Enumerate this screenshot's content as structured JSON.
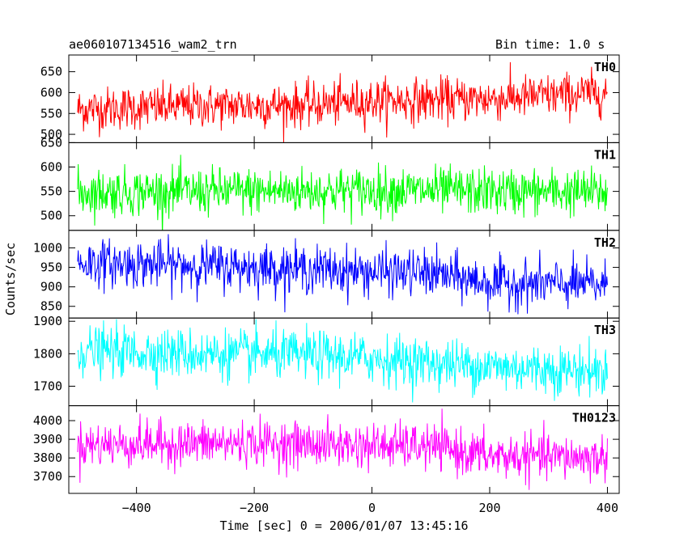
{
  "header": {
    "title": "ae060107134516_wam2_trn",
    "bin_time": "Bin time: 1.0 s"
  },
  "chart_data": {
    "type": "line",
    "xlabel": "Time [sec] 0 = 2006/01/07 13:45:16",
    "ylabel": "Counts/sec",
    "xlim": [
      -515,
      420
    ],
    "x_ticks": [
      -400,
      -200,
      0,
      200,
      400
    ],
    "x_tick_labels": [
      "−400",
      "−200",
      "0",
      "200",
      "400"
    ],
    "x_range": [
      -500,
      400
    ],
    "bin_time_s": 1.0,
    "grid": false,
    "panels": [
      {
        "name": "TH0",
        "color": "#ff0000",
        "ylim": [
          480,
          690
        ],
        "yticks": [
          500,
          550,
          600,
          650
        ],
        "trend": [
          [
            -500,
            560
          ],
          [
            -300,
            568
          ],
          [
            -100,
            570
          ],
          [
            0,
            580
          ],
          [
            200,
            585
          ],
          [
            400,
            600
          ]
        ],
        "noise_sd": 26
      },
      {
        "name": "TH1",
        "color": "#00ff00",
        "ylim": [
          470,
          650
        ],
        "yticks": [
          500,
          550,
          600,
          650
        ],
        "trend": [
          [
            -500,
            548
          ],
          [
            -250,
            550
          ],
          [
            0,
            552
          ],
          [
            200,
            550
          ],
          [
            400,
            548
          ]
        ],
        "noise_sd": 24
      },
      {
        "name": "TH2",
        "color": "#0000ff",
        "ylim": [
          820,
          1045
        ],
        "yticks": [
          850,
          900,
          950,
          1000
        ],
        "trend": [
          [
            -500,
            962
          ],
          [
            -300,
            955
          ],
          [
            -100,
            945
          ],
          [
            0,
            938
          ],
          [
            100,
            935
          ],
          [
            200,
            910
          ],
          [
            400,
            905
          ]
        ],
        "noise_sd": 30
      },
      {
        "name": "TH3",
        "color": "#00ffff",
        "ylim": [
          1640,
          1910
        ],
        "yticks": [
          1700,
          1800,
          1900
        ],
        "trend": [
          [
            -500,
            1810
          ],
          [
            -300,
            1800
          ],
          [
            -100,
            1795
          ],
          [
            0,
            1785
          ],
          [
            200,
            1760
          ],
          [
            400,
            1745
          ]
        ],
        "noise_sd": 38
      },
      {
        "name": "TH0123",
        "color": "#ff00ff",
        "ylim": [
          3610,
          4080
        ],
        "yticks": [
          3700,
          3800,
          3900,
          4000
        ],
        "trend": [
          [
            -500,
            3870
          ],
          [
            -200,
            3880
          ],
          [
            0,
            3865
          ],
          [
            100,
            3860
          ],
          [
            200,
            3810
          ],
          [
            400,
            3800
          ]
        ],
        "noise_sd": 60
      }
    ]
  }
}
